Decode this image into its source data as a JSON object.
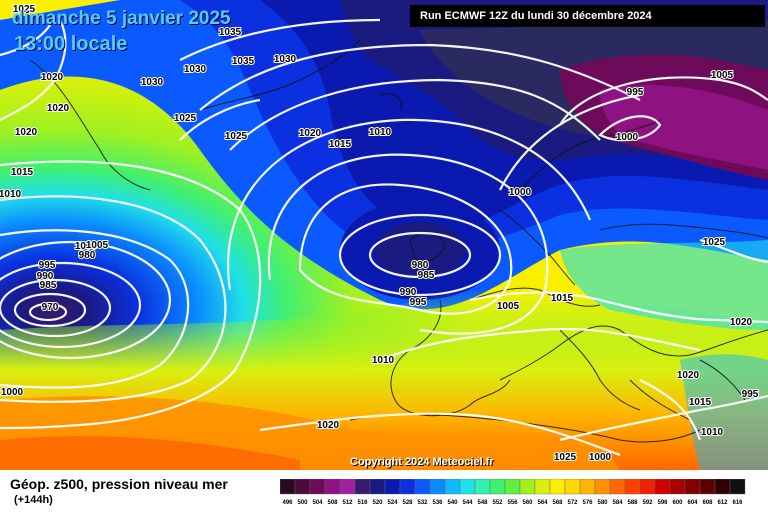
{
  "header": {
    "date": "dimanche 5 janvier 2025",
    "time": "13:00 locale",
    "run": "Run ECMWF 12Z du lundi 30 décembre 2024"
  },
  "copyright": "Copyright 2024 Meteociel.fr",
  "legend": {
    "title": "Géop. z500, pression niveau mer",
    "subtitle": "(+144h)",
    "bins": [
      {
        "label": "496",
        "color": "#2a0a1e"
      },
      {
        "label": "500",
        "color": "#4d0a3e"
      },
      {
        "label": "504",
        "color": "#6e0a5a"
      },
      {
        "label": "508",
        "color": "#8e1282"
      },
      {
        "label": "512",
        "color": "#a020a0"
      },
      {
        "label": "516",
        "color": "#3a1a6a"
      },
      {
        "label": "520",
        "color": "#1a1a80"
      },
      {
        "label": "524",
        "color": "#0a1ab0"
      },
      {
        "label": "528",
        "color": "#0a30e0"
      },
      {
        "label": "532",
        "color": "#0a5aff"
      },
      {
        "label": "536",
        "color": "#0a8aff"
      },
      {
        "label": "540",
        "color": "#10b8ff"
      },
      {
        "label": "544",
        "color": "#20e0e8"
      },
      {
        "label": "548",
        "color": "#30f0b0"
      },
      {
        "label": "552",
        "color": "#40f070"
      },
      {
        "label": "556",
        "color": "#60f040"
      },
      {
        "label": "560",
        "color": "#a0f020"
      },
      {
        "label": "564",
        "color": "#d8f010"
      },
      {
        "label": "568",
        "color": "#f8f000"
      },
      {
        "label": "572",
        "color": "#ffd800"
      },
      {
        "label": "576",
        "color": "#ffb400"
      },
      {
        "label": "580",
        "color": "#ff9000"
      },
      {
        "label": "584",
        "color": "#ff6800"
      },
      {
        "label": "588",
        "color": "#ff4000"
      },
      {
        "label": "592",
        "color": "#f02000"
      },
      {
        "label": "596",
        "color": "#d00000"
      },
      {
        "label": "600",
        "color": "#a80000"
      },
      {
        "label": "604",
        "color": "#800000"
      },
      {
        "label": "608",
        "color": "#5a0000"
      },
      {
        "label": "612",
        "color": "#300000"
      },
      {
        "label": "616",
        "color": "#101010"
      }
    ]
  },
  "pressure_labels": [
    "1025",
    "1035",
    "1030",
    "1035",
    "1030",
    "1020",
    "1030",
    "1020",
    "1025",
    "1020",
    "1025",
    "1020",
    "1015",
    "1010",
    "1015",
    "1010",
    "995",
    "1000",
    "1005",
    "1000",
    "995",
    "990",
    "985",
    "980",
    "970",
    "980",
    "985",
    "990",
    "995",
    "1000",
    "1005",
    "1005",
    "1015",
    "1025",
    "1010",
    "1020",
    "1015",
    "1020",
    "1010",
    "1020",
    "1025",
    "1000",
    "995",
    "1000"
  ]
}
